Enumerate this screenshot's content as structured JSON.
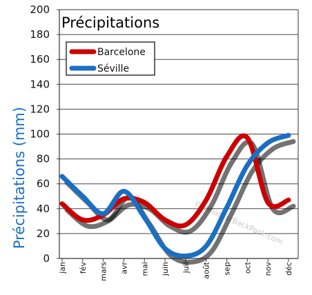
{
  "chart_data": {
    "type": "line",
    "title": "Précipitations",
    "ylabel": "Précipitations (mm)",
    "xlabel": "",
    "categories": [
      "jan",
      "fév",
      "mars",
      "avr",
      "mai",
      "juin",
      "juil",
      "août",
      "sep",
      "oct",
      "nov",
      "déc"
    ],
    "series": [
      {
        "name": "Barcelone",
        "color": "#cc0000",
        "values": [
          44,
          31,
          35,
          48,
          45,
          31,
          27,
          47,
          82,
          97,
          45,
          47
        ]
      },
      {
        "name": "Séville",
        "color": "#1a6fc4",
        "values": [
          66,
          50,
          36,
          54,
          33,
          8,
          2,
          10,
          41,
          75,
          93,
          99
        ]
      }
    ],
    "ylim": [
      0,
      200
    ],
    "yticks": [
      "0",
      "20",
      "40",
      "60",
      "80",
      "100",
      "120",
      "140",
      "160",
      "180",
      "200"
    ],
    "grid": true,
    "legend_position": "top-left",
    "watermark": "© WeatherBackPack.com"
  }
}
